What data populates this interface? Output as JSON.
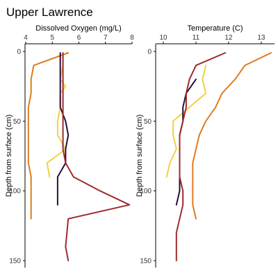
{
  "page_title": "Upper Lawrence",
  "chart_data": [
    {
      "type": "line",
      "xlabel": "Dissolved Oxygen (mg/L)",
      "ylabel": "Depth from surface (cm)",
      "xlim": [
        4,
        8
      ],
      "ylim": [
        0,
        150
      ],
      "y_inverted": true,
      "x_axis_position": "top",
      "xticks": [
        4,
        5,
        6,
        7,
        8
      ],
      "yticks": [
        0,
        50,
        100,
        150
      ],
      "grid": false,
      "series": [
        {
          "color": "#e07b1f",
          "points": [
            [
              5.6,
              1
            ],
            [
              4.3,
              10
            ],
            [
              4.2,
              20
            ],
            [
              4.2,
              30
            ],
            [
              4.1,
              40
            ],
            [
              4.1,
              50
            ],
            [
              4.1,
              60
            ],
            [
              4.1,
              70
            ],
            [
              4.1,
              80
            ],
            [
              4.2,
              90
            ],
            [
              4.2,
              100
            ],
            [
              4.2,
              110
            ],
            [
              4.2,
              120
            ]
          ]
        },
        {
          "color": "#f4d03f",
          "points": [
            [
              5.4,
              1
            ],
            [
              5.4,
              10
            ],
            [
              5.3,
              20
            ],
            [
              5.5,
              25
            ],
            [
              5.3,
              30
            ],
            [
              5.3,
              40
            ],
            [
              5.2,
              50
            ],
            [
              5.2,
              60
            ],
            [
              5.5,
              70
            ],
            [
              4.8,
              80
            ],
            [
              4.9,
              90
            ]
          ]
        },
        {
          "color": "#2b0a3d",
          "points": [
            [
              5.3,
              1
            ],
            [
              5.3,
              10
            ],
            [
              5.3,
              20
            ],
            [
              5.3,
              30
            ],
            [
              5.3,
              40
            ],
            [
              5.5,
              50
            ],
            [
              5.6,
              60
            ],
            [
              5.5,
              70
            ],
            [
              5.5,
              80
            ],
            [
              5.2,
              90
            ],
            [
              5.2,
              100
            ],
            [
              5.2,
              110
            ]
          ]
        },
        {
          "color": "#9e2a2b",
          "points": [
            [
              5.4,
              1
            ],
            [
              5.4,
              10
            ],
            [
              5.4,
              20
            ],
            [
              5.4,
              30
            ],
            [
              5.4,
              40
            ],
            [
              5.4,
              50
            ],
            [
              5.4,
              60
            ],
            [
              5.4,
              70
            ],
            [
              5.5,
              80
            ],
            [
              5.8,
              90
            ],
            [
              6.8,
              100
            ],
            [
              7.9,
              110
            ],
            [
              5.6,
              120
            ],
            [
              5.5,
              140
            ],
            [
              5.6,
              150
            ]
          ]
        }
      ]
    },
    {
      "type": "line",
      "xlabel": "Temperature (C)",
      "ylabel": "Depth from surface (cm)",
      "xlim": [
        10,
        13.3
      ],
      "ylim": [
        0,
        150
      ],
      "y_inverted": true,
      "x_axis_position": "top",
      "xticks": [
        10,
        11,
        12,
        13
      ],
      "yticks": [
        0,
        50,
        100,
        150
      ],
      "grid": false,
      "series": [
        {
          "color": "#e07b1f",
          "points": [
            [
              13.3,
              1
            ],
            [
              12.5,
              10
            ],
            [
              12.2,
              20
            ],
            [
              11.8,
              30
            ],
            [
              11.6,
              40
            ],
            [
              11.3,
              50
            ],
            [
              11.1,
              60
            ],
            [
              11.0,
              70
            ],
            [
              10.9,
              80
            ],
            [
              10.9,
              90
            ],
            [
              10.9,
              100
            ],
            [
              10.9,
              110
            ],
            [
              11.0,
              120
            ]
          ]
        },
        {
          "color": "#f4d03f",
          "points": [
            [
              11.3,
              10
            ],
            [
              11.2,
              20
            ],
            [
              11.3,
              30
            ],
            [
              10.8,
              40
            ],
            [
              10.3,
              50
            ],
            [
              10.3,
              60
            ],
            [
              10.4,
              70
            ],
            [
              10.2,
              80
            ],
            [
              10.1,
              90
            ]
          ]
        },
        {
          "color": "#2b0a3d",
          "points": [
            [
              11.0,
              20
            ],
            [
              10.7,
              30
            ],
            [
              10.6,
              40
            ],
            [
              10.6,
              50
            ],
            [
              10.5,
              60
            ],
            [
              10.5,
              70
            ],
            [
              10.5,
              80
            ],
            [
              10.5,
              90
            ],
            [
              10.5,
              100
            ],
            [
              10.4,
              110
            ]
          ]
        },
        {
          "color": "#9e2a2b",
          "points": [
            [
              11.9,
              1
            ],
            [
              11.0,
              10
            ],
            [
              10.8,
              20
            ],
            [
              10.7,
              30
            ],
            [
              10.7,
              40
            ],
            [
              10.6,
              50
            ],
            [
              10.5,
              60
            ],
            [
              10.5,
              70
            ],
            [
              10.5,
              80
            ],
            [
              10.5,
              90
            ],
            [
              10.6,
              100
            ],
            [
              10.6,
              110
            ],
            [
              10.5,
              120
            ],
            [
              10.4,
              130
            ],
            [
              10.4,
              140
            ],
            [
              10.4,
              150
            ]
          ]
        }
      ]
    }
  ]
}
